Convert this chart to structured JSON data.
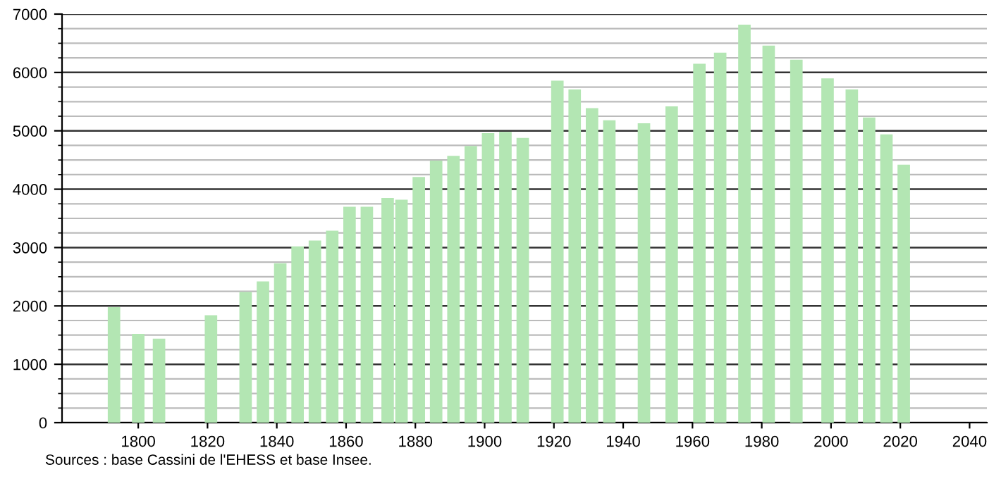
{
  "chart_data": {
    "type": "bar",
    "x": [
      1793,
      1800,
      1806,
      1821,
      1831,
      1836,
      1841,
      1846,
      1851,
      1856,
      1861,
      1866,
      1872,
      1876,
      1881,
      1886,
      1891,
      1896,
      1901,
      1906,
      1911,
      1921,
      1926,
      1931,
      1936,
      1946,
      1954,
      1962,
      1968,
      1975,
      1982,
      1990,
      1999,
      2006,
      2011,
      2016,
      2021
    ],
    "values": [
      1980,
      1520,
      1440,
      1840,
      2240,
      2420,
      2730,
      3020,
      3120,
      3290,
      3700,
      3700,
      3850,
      3820,
      4210,
      4490,
      4570,
      4740,
      4960,
      4980,
      4880,
      5860,
      5710,
      5390,
      5180,
      5130,
      5420,
      6150,
      6340,
      6820,
      6460,
      6220,
      5900,
      5710,
      5230,
      4940,
      4420
    ],
    "color": "#b3e6b3",
    "xlim": [
      1778,
      2045
    ],
    "xticks": [
      1800,
      1820,
      1840,
      1860,
      1880,
      1900,
      1920,
      1940,
      1960,
      1980,
      2000,
      2020,
      2040
    ],
    "ylim": [
      0,
      7000
    ],
    "yticks": [
      0,
      1000,
      2000,
      3000,
      4000,
      5000,
      6000,
      7000
    ],
    "grid": "y",
    "annotations": [
      "Sources : base Cassini de l'EHESS et base Insee."
    ]
  }
}
